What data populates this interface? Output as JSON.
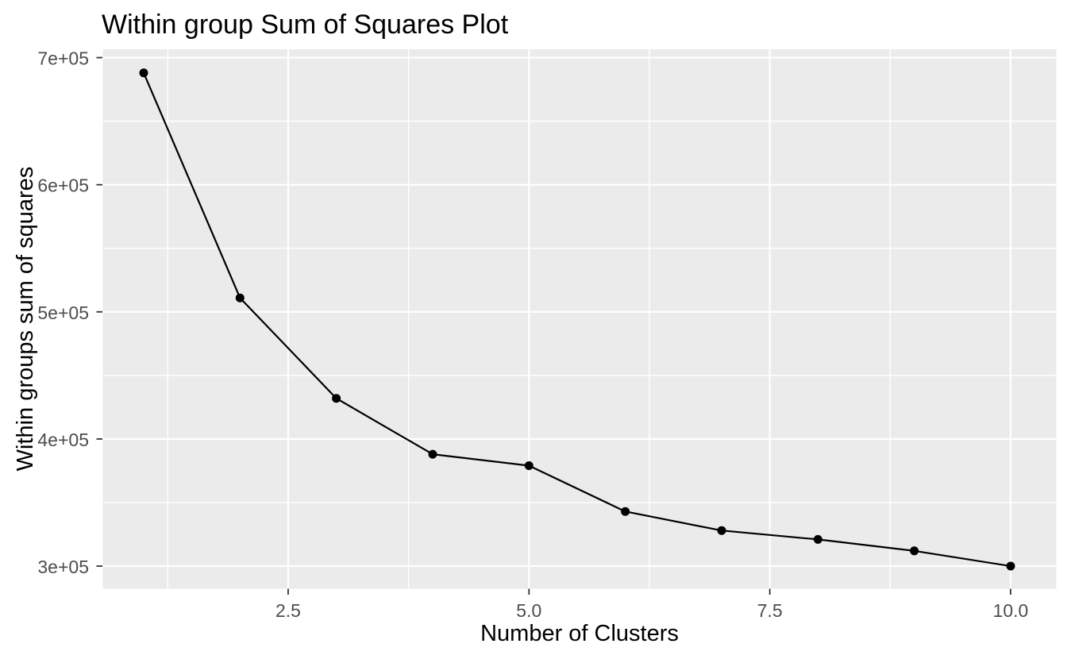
{
  "chart_data": {
    "type": "line",
    "title": "Within group Sum of Squares Plot",
    "xlabel": "Number of Clusters",
    "ylabel": "Within groups sum of squares",
    "x": [
      1,
      2,
      3,
      4,
      5,
      6,
      7,
      8,
      9,
      10
    ],
    "y": [
      688000,
      511000,
      432000,
      388000,
      379000,
      343000,
      328000,
      321000,
      312000,
      300000
    ],
    "series_name": "within-group-sum-of-squares",
    "x_ticks": {
      "values": [
        2.5,
        5.0,
        7.5,
        10.0
      ],
      "labels": [
        "2.5",
        "5.0",
        "7.5",
        "10.0"
      ]
    },
    "y_ticks": {
      "values": [
        300000,
        400000,
        500000,
        600000,
        700000
      ],
      "labels": [
        "3e+05",
        "4e+05",
        "5e+05",
        "6e+05",
        "7e+05"
      ]
    },
    "x_minor_breaks": [
      1.25,
      3.75,
      6.25,
      8.75
    ],
    "y_minor_breaks": [
      350000,
      450000,
      550000,
      650000
    ],
    "xlim": [
      0.58,
      10.47
    ],
    "ylim": [
      282200,
      706600
    ],
    "grid": "major-and-minor-white-on-gray",
    "legend": "none",
    "marker": "filled-circle",
    "colors": {
      "background": "#FFFFFF",
      "panel_background": "#EBEBEB",
      "gridline": "#FFFFFF",
      "line": "#000000",
      "point": "#000000",
      "tick_label": "#4D4D4D",
      "tick_mark": "#333333",
      "title": "#000000",
      "axis_title": "#000000"
    }
  }
}
